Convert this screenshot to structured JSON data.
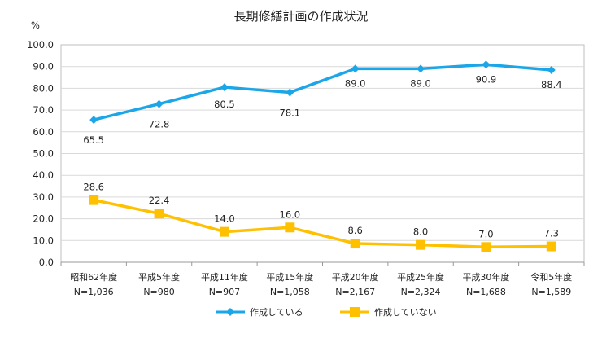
{
  "chart_data": {
    "type": "line",
    "title": "長期修繕計画の作成状況",
    "ylabel": "%",
    "ylim": [
      0,
      100
    ],
    "yticks": [
      "0.0",
      "10.0",
      "20.0",
      "30.0",
      "40.0",
      "50.0",
      "60.0",
      "70.0",
      "80.0",
      "90.0",
      "100.0"
    ],
    "categories": [
      "昭和62年度",
      "平成5年度",
      "平成11年度",
      "平成15年度",
      "平成20年度",
      "平成25年度",
      "平成30年度",
      "令和5年度"
    ],
    "sample_sizes": [
      "N=1,036",
      "N=980",
      "N=907",
      "N=1,058",
      "N=2,167",
      "N=2,324",
      "N=1,688",
      "N=1,589"
    ],
    "series": [
      {
        "name": "作成している",
        "color": "#1aa6e8",
        "marker": "diamond",
        "values": [
          65.5,
          72.8,
          80.5,
          78.1,
          89.0,
          89.0,
          90.9,
          88.4
        ],
        "labels": [
          "65.5",
          "72.8",
          "80.5",
          "78.1",
          "89.0",
          "89.0",
          "90.9",
          "88.4"
        ]
      },
      {
        "name": "作成していない",
        "color": "#ffc000",
        "marker": "square",
        "values": [
          28.6,
          22.4,
          14.0,
          16.0,
          8.6,
          8.0,
          7.0,
          7.3
        ],
        "labels": [
          "28.6",
          "22.4",
          "14.0",
          "16.0",
          "8.6",
          "8.0",
          "7.0",
          "7.3"
        ]
      }
    ],
    "grid": true,
    "legend": "bottom"
  }
}
